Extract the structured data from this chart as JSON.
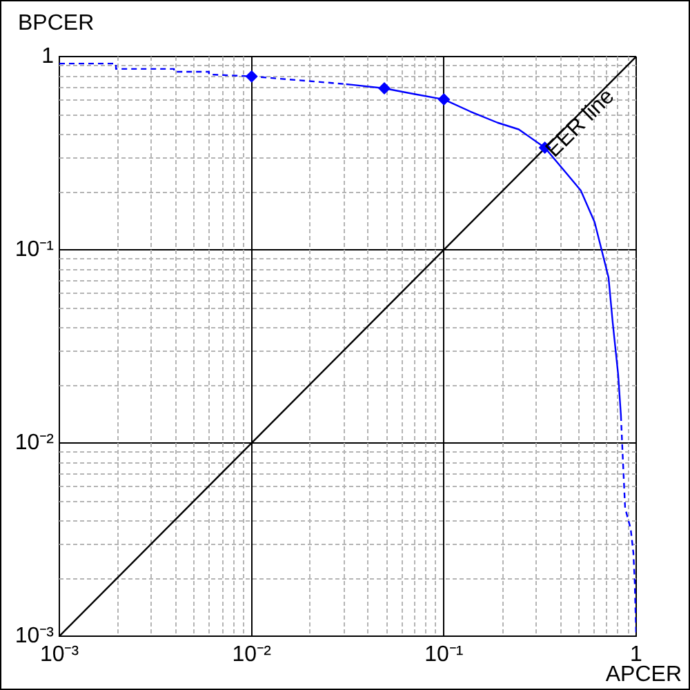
{
  "chart_data": {
    "type": "line",
    "xlabel": "APCER",
    "ylabel": "BPCER",
    "log": "xy",
    "grid": true,
    "legend": false,
    "xlim": [
      0.001,
      1
    ],
    "ylim": [
      0.001,
      1
    ],
    "xticks": [
      {
        "value": 0.001,
        "label": "10⁻³"
      },
      {
        "value": 0.01,
        "label": "10⁻²"
      },
      {
        "value": 0.1,
        "label": "10⁻¹"
      },
      1
    ],
    "yticks": [
      {
        "value": 0.001,
        "label": "10⁻³"
      },
      {
        "value": 0.01,
        "label": "10⁻²"
      },
      {
        "value": 0.1,
        "label": "10⁻¹"
      },
      1
    ],
    "annotations": [
      {
        "text": "EER line",
        "x": 0.45,
        "y": 0.45
      }
    ],
    "series": [
      {
        "color": "#0000ff",
        "line_style": "dashed",
        "marker": "none",
        "x": [
          0.001,
          0.00197,
          0.00197,
          0.00395,
          0.00395,
          0.006,
          0.006,
          0.01,
          0.031
        ],
        "values": [
          0.92,
          0.92,
          0.863,
          0.863,
          0.835,
          0.835,
          0.808,
          0.79,
          0.72
        ]
      },
      {
        "color": "#0000ff",
        "line_style": "solid",
        "marker": "none",
        "x": [
          0.031,
          0.049,
          0.07,
          0.1,
          0.137,
          0.19,
          0.245,
          0.335,
          0.515,
          0.608,
          0.718,
          0.755,
          0.806,
          0.833
        ],
        "values": [
          0.72,
          0.685,
          0.64,
          0.6,
          0.52,
          0.455,
          0.42,
          0.338,
          0.203,
          0.139,
          0.072,
          0.042,
          0.0226,
          0.0139
        ]
      },
      {
        "color": "#0000ff",
        "line_style": "dashed",
        "marker": "none",
        "x": [
          0.833,
          0.847,
          0.876,
          0.936,
          0.967,
          0.983,
          1
        ],
        "values": [
          0.0139,
          0.0095,
          0.0046,
          0.0036,
          0.0027,
          0.0019,
          0.001
        ]
      },
      {
        "type": "scatter",
        "color": "#0000ff",
        "marker": "diamond",
        "x": [
          0.01,
          0.049,
          0.1,
          0.335
        ],
        "values": [
          0.79,
          0.685,
          0.6,
          0.338
        ]
      },
      {
        "color": "#000000",
        "line_style": "solid",
        "marker": "none",
        "x": [
          0.001,
          1
        ],
        "values": [
          0.001,
          1
        ]
      }
    ]
  }
}
